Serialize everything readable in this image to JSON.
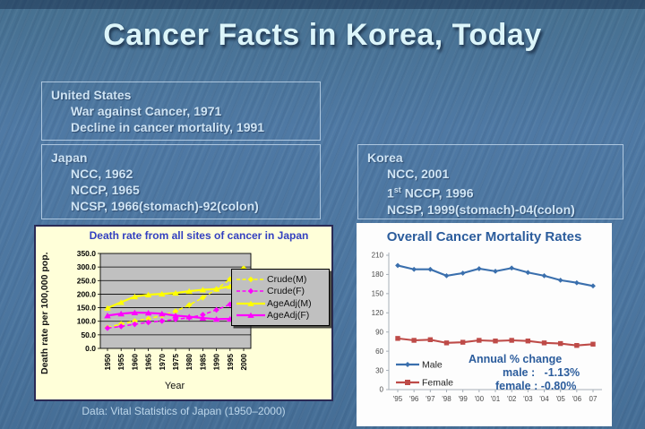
{
  "title": "Cancer Facts in Korea, Today",
  "us": {
    "title": "United States",
    "line1": "War against Cancer, 1971",
    "line2": "Decline in cancer mortality, 1991"
  },
  "japan": {
    "title": "Japan",
    "line1": "NCC, 1962",
    "line2": "NCCP, 1965",
    "line3": "NCSP, 1966(stomach)-92(colon)"
  },
  "korea": {
    "title": "Korea",
    "line1": "NCC, 2001",
    "line2_num": "1",
    "line2_sup": "st",
    "line2_rest": " NCCP, 1996",
    "line3": "NCSP, 1999(stomach)-04(colon)"
  },
  "caption": "Data: Vital Statistics of Japan (1950–2000)",
  "chart_data": [
    {
      "type": "line",
      "title": "Death rate from all sites of cancer in Japan",
      "xlabel": "Year",
      "ylabel": "Death rate per 100,000 pop.",
      "ylim": [
        0,
        350
      ],
      "ytick_step": 50,
      "ytick_decimals": 1,
      "grid": true,
      "plot_bg": "#C0C0C0",
      "legend_position": "right",
      "categories": [
        1950,
        1955,
        1960,
        1965,
        1970,
        1975,
        1980,
        1985,
        1990,
        1995,
        2000
      ],
      "series": [
        {
          "name": "Crude(M)",
          "color": "#FFFF00",
          "dash": true,
          "marker": "diamond",
          "values": [
            77,
            90,
            101,
            109,
            121,
            137,
            160,
            187,
            218,
            255,
            295
          ]
        },
        {
          "name": "Crude(F)",
          "color": "#FF00FF",
          "dash": true,
          "marker": "diamond",
          "values": [
            75,
            81,
            89,
            96,
            101,
            107,
            113,
            124,
            142,
            162,
            184
          ]
        },
        {
          "name": "AgeAdj(M)",
          "color": "#FFFF00",
          "dash": false,
          "marker": "triangle",
          "values": [
            149,
            170,
            191,
            198,
            201,
            204,
            211,
            216,
            219,
            229,
            213
          ]
        },
        {
          "name": "AgeAdj(F)",
          "color": "#FF00FF",
          "dash": false,
          "marker": "triangle",
          "values": [
            121,
            128,
            132,
            131,
            128,
            121,
            117,
            112,
            108,
            109,
            104
          ]
        }
      ]
    },
    {
      "type": "line",
      "title": "Overall Cancer Mortality Rates",
      "xlabel": "",
      "ylabel": "",
      "ylim": [
        0,
        210
      ],
      "ytick_step": 30,
      "ytick_decimals": 0,
      "grid": false,
      "plot_bg": "#FDFDFD",
      "legend_position": "inside-bottom-left",
      "categories": [
        "'95",
        "'96",
        "'97",
        "'98",
        "'99",
        "'00",
        "'01",
        "'02",
        "'03",
        "'04",
        "'05",
        "'06",
        "07"
      ],
      "series": [
        {
          "name": "Male",
          "color": "#3A6FAD",
          "dash": false,
          "marker": "diamond",
          "values": [
            194,
            188,
            188,
            178,
            182,
            189,
            185,
            190,
            183,
            178,
            171,
            167,
            162
          ]
        },
        {
          "name": "Female",
          "color": "#BE4B48",
          "dash": false,
          "marker": "square",
          "values": [
            80,
            77,
            78,
            73,
            74,
            77,
            76,
            77,
            76,
            73,
            72,
            69,
            71
          ]
        }
      ],
      "annotation": {
        "line1": "Annual % change",
        "line2": "male :   -1.13%",
        "line3": "female : -0.80%"
      }
    }
  ]
}
